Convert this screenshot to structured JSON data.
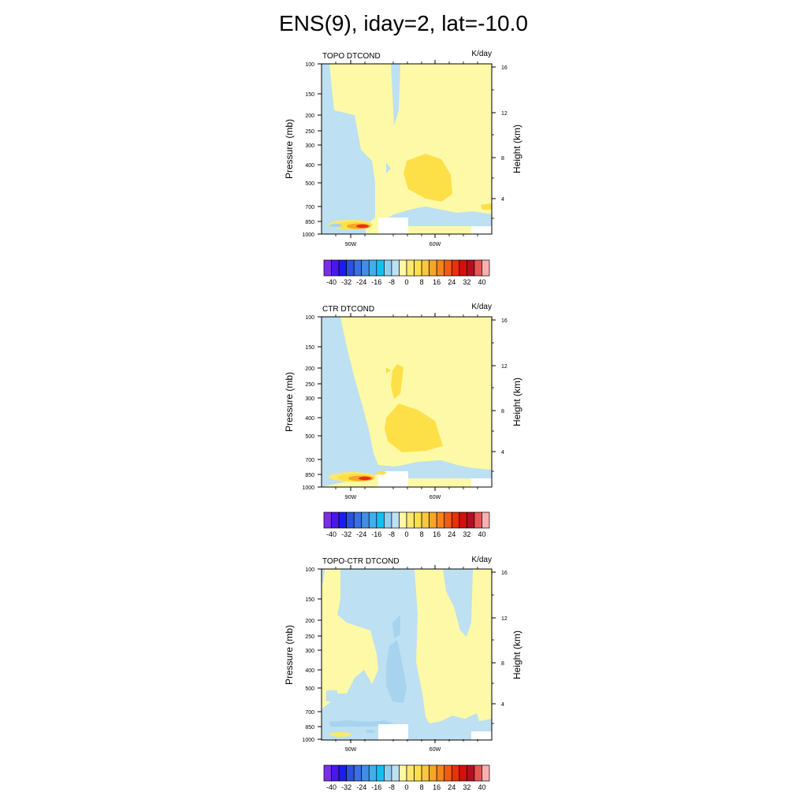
{
  "title": "ENS(9), iday=2, lat=-10.0",
  "colors": {
    "fill_levels": [
      "#7b2ee6",
      "#4b17e8",
      "#1c1cf0",
      "#2c52d8",
      "#3a70e0",
      "#3f8fe6",
      "#3fb0ee",
      "#12c0f0",
      "#8fd0f0",
      "#bde0f2",
      "#fef9a6",
      "#fde76d",
      "#fde047",
      "#fcc63b",
      "#f8a52c",
      "#f5841c",
      "#f15c12",
      "#e8300c",
      "#d40f0e",
      "#b01020",
      "#e85555",
      "#f7b0b0"
    ],
    "light_blue": "#bde0f2",
    "mid_blue": "#a7d3ee",
    "light_yellow": "#fef9a6",
    "mid_yellow": "#fde76d",
    "gold": "#fde047",
    "orange": "#f8a52c",
    "red": "#e8300c"
  },
  "chart_data": [
    {
      "type": "heatmap",
      "title": "TOPO DTCOND",
      "units": "K/day",
      "ylabel": "Pressure (mb)",
      "ylabel_right": "Height (km)",
      "pressure_ticks": [
        "100",
        "150",
        "200",
        "250",
        "300",
        "400",
        "500",
        "700",
        "850",
        "1000"
      ],
      "height_ticks": [
        "16",
        "12",
        "8",
        "4"
      ],
      "x_ticks": [
        "90W",
        "60W"
      ],
      "colorbar_labels": [
        "-40",
        "-32",
        "-24",
        "-16",
        "-8",
        "0",
        "8",
        "16",
        "24",
        "32",
        "40"
      ]
    },
    {
      "type": "heatmap",
      "title": "CTR DTCOND",
      "units": "K/day",
      "ylabel": "Pressure (mb)",
      "ylabel_right": "Height (km)",
      "pressure_ticks": [
        "100",
        "150",
        "200",
        "250",
        "300",
        "400",
        "500",
        "700",
        "850",
        "1000"
      ],
      "height_ticks": [
        "16",
        "12",
        "8",
        "4"
      ],
      "x_ticks": [
        "90W",
        "60W"
      ],
      "colorbar_labels": [
        "-40",
        "-32",
        "-24",
        "-16",
        "-8",
        "0",
        "8",
        "16",
        "24",
        "32",
        "40"
      ]
    },
    {
      "type": "heatmap",
      "title": "TOPO-CTR DTCOND",
      "units": "K/day",
      "ylabel": "Pressure (mb)",
      "ylabel_right": "Height (km)",
      "pressure_ticks": [
        "100",
        "150",
        "200",
        "250",
        "300",
        "400",
        "500",
        "700",
        "850",
        "1000"
      ],
      "height_ticks": [
        "16",
        "12",
        "8",
        "4"
      ],
      "x_ticks": [
        "90W",
        "60W"
      ],
      "colorbar_labels": [
        "-40",
        "-32",
        "-24",
        "-16",
        "-8",
        "0",
        "8",
        "16",
        "24",
        "32",
        "40"
      ]
    }
  ]
}
